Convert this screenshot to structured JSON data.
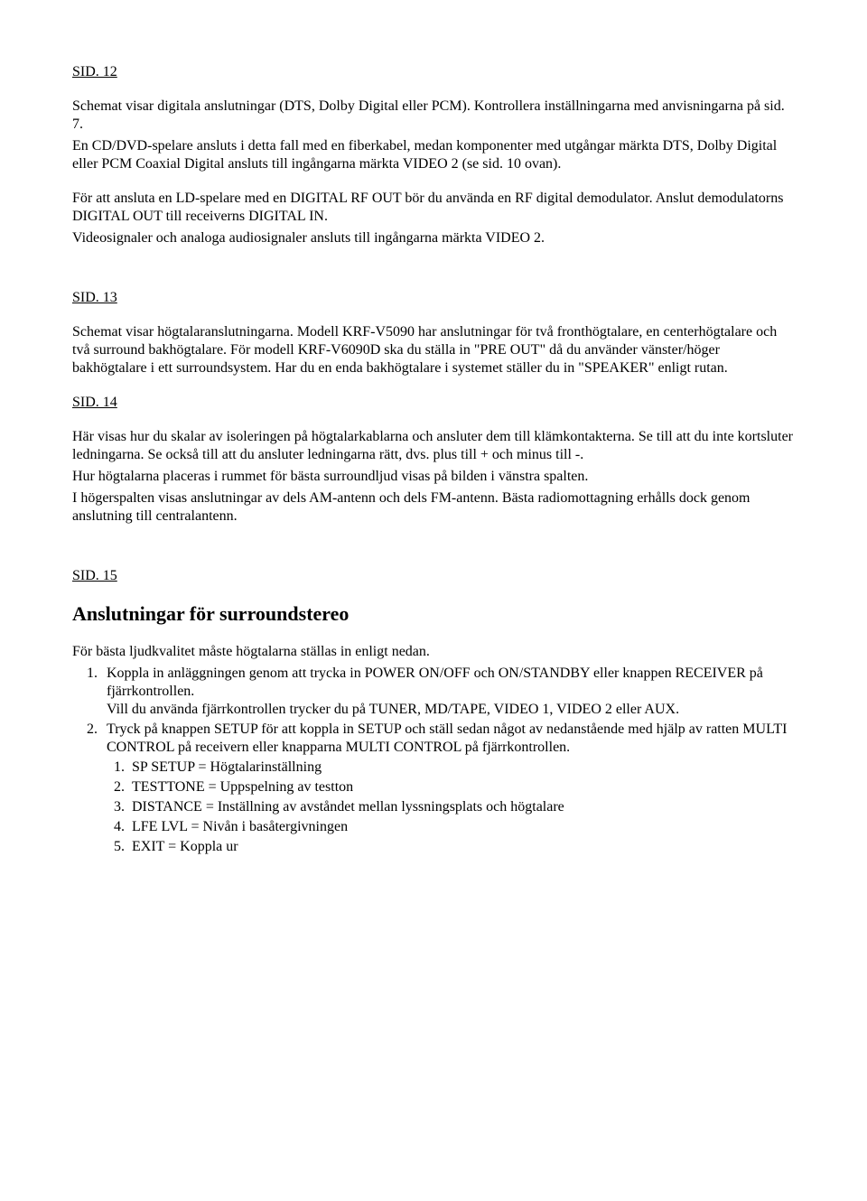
{
  "sid12": {
    "header": "SID. 12",
    "p1": "Schemat visar digitala anslutningar (DTS, Dolby Digital eller PCM). Kontrollera inställningarna med anvisningarna på sid. 7.",
    "p2": "En CD/DVD-spelare ansluts i detta fall med en fiberkabel, medan komponenter med utgångar märkta DTS, Dolby Digital eller PCM Coaxial Digital ansluts till ingångarna märkta VIDEO 2 (se sid. 10 ovan).",
    "p3": "För att ansluta en LD-spelare med en DIGITAL RF OUT bör du använda en RF digital demodulator. Anslut demodulatorns DIGITAL OUT till receiverns DIGITAL IN.",
    "p4": "Videosignaler och analoga audiosignaler ansluts till ingångarna märkta VIDEO 2."
  },
  "sid13": {
    "header": "SID. 13",
    "p1": "Schemat visar högtalaranslutningarna. Modell KRF-V5090 har anslutningar för två fronthögtalare, en centerhögtalare och två surround bakhögtalare. För modell KRF-V6090D ska du ställa in \"PRE OUT\" då du använder vänster/höger bakhögtalare i ett surroundsystem. Har du en enda bakhögtalare i systemet ställer du in \"SPEAKER\" enligt rutan."
  },
  "sid14": {
    "header": "SID. 14",
    "p1": "Här visas hur du skalar av isoleringen på högtalarkablarna och ansluter dem till klämkontakterna. Se till att du inte kortsluter ledningarna. Se också till att du ansluter ledningarna rätt, dvs. plus till + och minus till -.",
    "p2": "Hur högtalarna placeras i rummet för bästa surroundljud visas på bilden i vänstra spalten.",
    "p3": "I högerspalten visas anslutningar av dels AM-antenn och dels FM-antenn. Bästa radiomottagning erhålls dock genom anslutning till centralantenn."
  },
  "sid15": {
    "header": "SID. 15",
    "title": "Anslutningar för surroundstereo",
    "intro": "För bästa ljudkvalitet måste högtalarna ställas in enligt nedan.",
    "item1a": "Koppla in anläggningen genom att trycka in POWER ON/OFF och ON/STANDBY eller knappen RECEIVER på fjärrkontrollen.",
    "item1b": "Vill du använda fjärrkontrollen trycker du på TUNER, MD/TAPE, VIDEO 1, VIDEO 2 eller AUX.",
    "item2": "Tryck på knappen SETUP för att koppla in SETUP och ställ sedan något av nedanstående med hjälp av ratten MULTI CONTROL på receivern eller knapparna MULTI CONTROL på fjärrkontrollen.",
    "sub1": "SP SETUP = Högtalarinställning",
    "sub2": "TESTTONE = Uppspelning av testton",
    "sub3": "DISTANCE = Inställning av avståndet mellan lyssningsplats och högtalare",
    "sub4": "LFE LVL = Nivån i basåtergivningen",
    "sub5": "EXIT = Koppla ur"
  }
}
